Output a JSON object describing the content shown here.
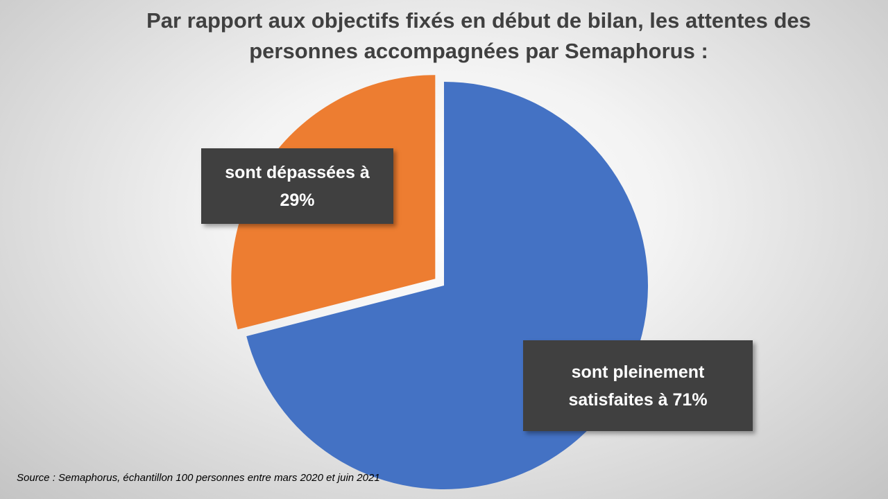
{
  "chart_data": {
    "type": "pie",
    "title_lines": [
      "Par rapport aux objectifs fixés en début de bilan, les attentes des",
      "personnes accompagnées par Semaphorus  :"
    ],
    "slices": [
      {
        "value": 71,
        "label_lines": [
          "sont pleinement",
          "satisfaites à  71%"
        ],
        "color": "#4472C4"
      },
      {
        "value": 29,
        "label_lines": [
          "sont dépassées à",
          "29%"
        ],
        "color": "#ED7D31"
      }
    ],
    "exploded_slice": "sont dépassées à",
    "legend": "none"
  },
  "source": "Source : Semaphorus, échantillon 100 personnes entre mars 2020 et juin 2021"
}
